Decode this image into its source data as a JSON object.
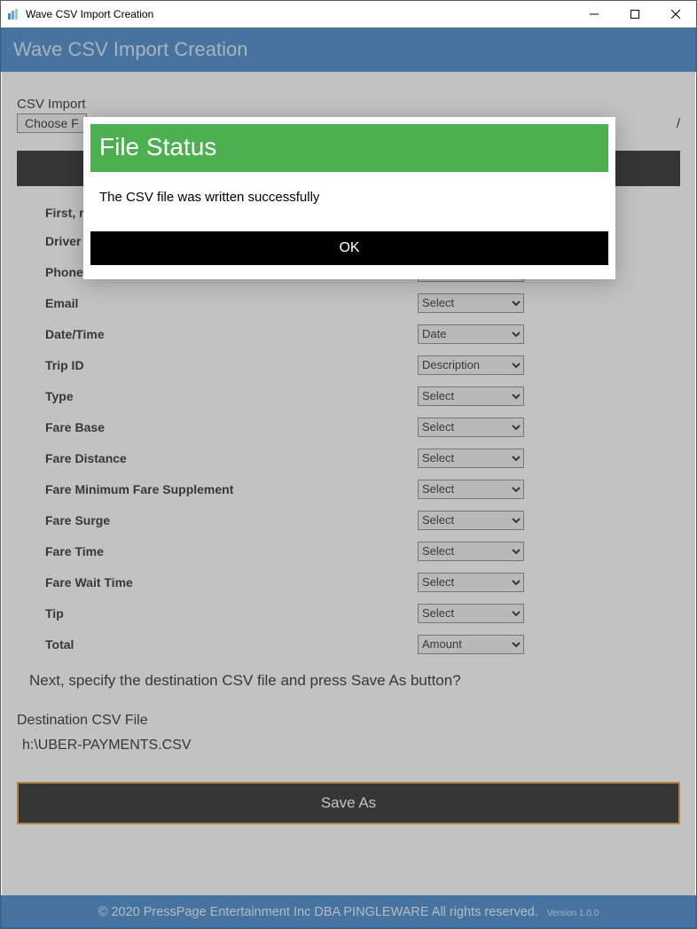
{
  "window": {
    "title": "Wave CSV Import Creation"
  },
  "header": {
    "title": "Wave CSV Import Creation"
  },
  "csv_import": {
    "label": "CSV Import",
    "choose_button": "Choose F",
    "file_suffix": "/"
  },
  "black_bar_label": "",
  "form": {
    "intro": "First, r",
    "rows": [
      {
        "label": "Driver",
        "value": ""
      },
      {
        "label": "Phone Number",
        "value": "Select"
      },
      {
        "label": "Email",
        "value": "Select"
      },
      {
        "label": "Date/Time",
        "value": "Date"
      },
      {
        "label": "Trip ID",
        "value": "Description"
      },
      {
        "label": "Type",
        "value": "Select"
      },
      {
        "label": "Fare Base",
        "value": "Select"
      },
      {
        "label": "Fare Distance",
        "value": "Select"
      },
      {
        "label": "Fare Minimum Fare Supplement",
        "value": "Select"
      },
      {
        "label": "Fare Surge",
        "value": "Select"
      },
      {
        "label": "Fare Time",
        "value": "Select"
      },
      {
        "label": "Fare Wait Time",
        "value": "Select"
      },
      {
        "label": "Tip",
        "value": "Select"
      },
      {
        "label": "Total",
        "value": "Amount"
      }
    ]
  },
  "next_text": "Next, specify the destination CSV file and press Save As button?",
  "destination": {
    "label": "Destination CSV File",
    "value": "h:\\UBER-PAYMENTS.CSV"
  },
  "save_as_label": "Save As",
  "footer": {
    "copyright": "© 2020 PressPage Entertainment Inc DBA PINGLEWARE  All rights reserved.",
    "version": "Version 1.0.0"
  },
  "modal": {
    "title": "File Status",
    "message": "The CSV file was written successfully",
    "ok_label": "OK"
  },
  "colors": {
    "header_bg": "#1e6fc0",
    "modal_header_bg": "#4caf50",
    "save_border": "#d98b1f"
  }
}
